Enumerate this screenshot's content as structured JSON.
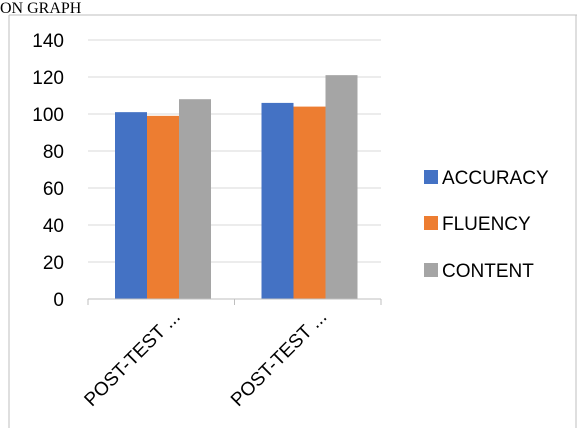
{
  "title_fragment": "ON GRAPH",
  "colors": {
    "accuracy": "#4472C4",
    "fluency": "#ED7D31",
    "content": "#A5A5A5",
    "grid": "#D9D9D9",
    "border": "#BFBFBF"
  },
  "chart_data": {
    "type": "bar",
    "categories": [
      "POST-TEST ...",
      "POST-TEST ..."
    ],
    "series": [
      {
        "name": "ACCURACY",
        "values": [
          101,
          106
        ]
      },
      {
        "name": "FLUENCY",
        "values": [
          99,
          104
        ]
      },
      {
        "name": "CONTENT",
        "values": [
          108,
          121
        ]
      }
    ],
    "ylim": [
      0,
      140
    ],
    "yticks": [
      "0",
      "20",
      "40",
      "60",
      "80",
      "100",
      "120",
      "140"
    ],
    "grid": true,
    "legend_position": "right"
  }
}
